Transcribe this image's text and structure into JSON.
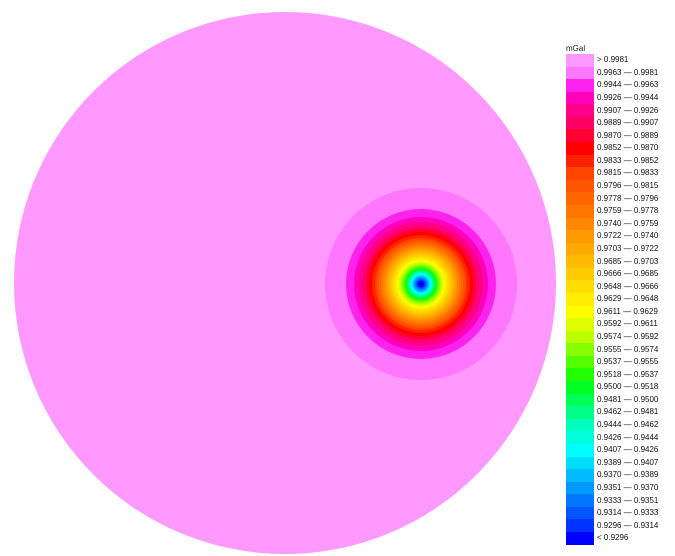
{
  "chart_data": {
    "type": "heatmap",
    "unit": "mGal",
    "legend": {
      "title": "mGal",
      "placement": "right",
      "entries": [
        {
          "label": "> 0.9981",
          "color": "#ff99ff"
        },
        {
          "label": "0.9963 — 0.9981",
          "color": "#ff77ff"
        },
        {
          "label": "0.9944 — 0.9963",
          "color": "#ff22ee"
        },
        {
          "label": "0.9926 — 0.9944",
          "color": "#ff00bb"
        },
        {
          "label": "0.9907 — 0.9926",
          "color": "#ff0088"
        },
        {
          "label": "0.9889 — 0.9907",
          "color": "#ff0066"
        },
        {
          "label": "0.9870 — 0.9889",
          "color": "#ff0033"
        },
        {
          "label": "0.9852 — 0.9870",
          "color": "#ff0000"
        },
        {
          "label": "0.9833 — 0.9852",
          "color": "#ff2200"
        },
        {
          "label": "0.9815 — 0.9833",
          "color": "#ff4400"
        },
        {
          "label": "0.9796 — 0.9815",
          "color": "#ff5500"
        },
        {
          "label": "0.9778 — 0.9796",
          "color": "#ff6600"
        },
        {
          "label": "0.9759 — 0.9778",
          "color": "#ff7700"
        },
        {
          "label": "0.9740 — 0.9759",
          "color": "#ff8800"
        },
        {
          "label": "0.9722 — 0.9740",
          "color": "#ff9900"
        },
        {
          "label": "0.9703 — 0.9722",
          "color": "#ffaa00"
        },
        {
          "label": "0.9685 — 0.9703",
          "color": "#ffbb00"
        },
        {
          "label": "0.9666 — 0.9685",
          "color": "#ffcc00"
        },
        {
          "label": "0.9648 — 0.9666",
          "color": "#ffdd00"
        },
        {
          "label": "0.9629 — 0.9648",
          "color": "#ffee00"
        },
        {
          "label": "0.9611 — 0.9629",
          "color": "#ffff00"
        },
        {
          "label": "0.9592 — 0.9611",
          "color": "#ddff00"
        },
        {
          "label": "0.9574 — 0.9592",
          "color": "#bbff00"
        },
        {
          "label": "0.9555 — 0.9574",
          "color": "#88ff00"
        },
        {
          "label": "0.9537 — 0.9555",
          "color": "#55ff00"
        },
        {
          "label": "0.9518 — 0.9537",
          "color": "#22ff00"
        },
        {
          "label": "0.9500 — 0.9518",
          "color": "#00ff22"
        },
        {
          "label": "0.9481 — 0.9500",
          "color": "#00ff55"
        },
        {
          "label": "0.9462 — 0.9481",
          "color": "#00ff88"
        },
        {
          "label": "0.9444 — 0.9462",
          "color": "#00ffbb"
        },
        {
          "label": "0.9426 — 0.9444",
          "color": "#00ffdd"
        },
        {
          "label": "0.9407 — 0.9426",
          "color": "#00ffff"
        },
        {
          "label": "0.9389 — 0.9407",
          "color": "#00ddff"
        },
        {
          "label": "0.9370 — 0.9389",
          "color": "#00bbff"
        },
        {
          "label": "0.9351 — 0.9370",
          "color": "#0099ff"
        },
        {
          "label": "0.9333 — 0.9351",
          "color": "#0077ff"
        },
        {
          "label": "0.9314 — 0.9333",
          "color": "#0055ff"
        },
        {
          "label": "0.9296 — 0.9314",
          "color": "#0033ff"
        },
        {
          "label": "< 0.9296",
          "color": "#0000ff"
        }
      ]
    }
  }
}
